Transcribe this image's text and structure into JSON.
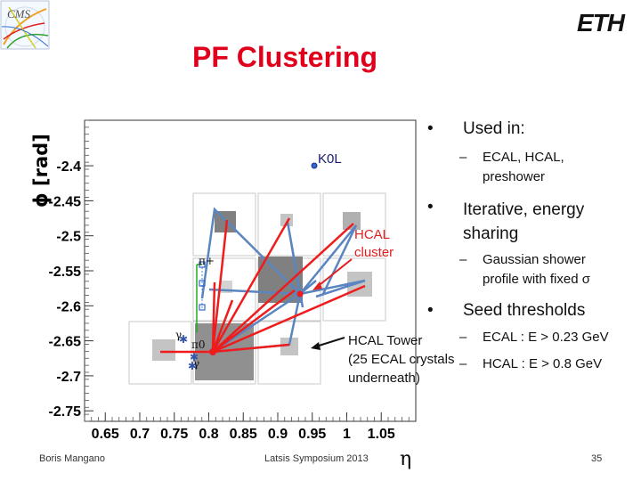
{
  "slide": {
    "title": "PF Clustering",
    "logo_left": "CMS",
    "logo_right": "ETH"
  },
  "chart_data": {
    "type": "scatter",
    "title": "",
    "xlabel": "η",
    "ylabel": "ϕ [rad]",
    "xlim": [
      0.62,
      1.1
    ],
    "ylim": [
      -2.765,
      -2.335
    ],
    "x_ticks": [
      "0.65",
      "0.7",
      "0.75",
      "0.8",
      "0.85",
      "0.9",
      "0.95",
      "1",
      "1.05"
    ],
    "y_ticks": [
      "-2.4",
      "-2.45",
      "-2.5",
      "-2.55",
      "-2.6",
      "-2.65",
      "-2.7",
      "-2.75"
    ],
    "annotations": [
      "K0L",
      "HCAL cluster",
      "HCAL Tower (25 ECAL crystals underneath)"
    ],
    "particle_labels": [
      "π+",
      "γ",
      "π0",
      "γ"
    ]
  },
  "bullets": [
    {
      "text": "Used in:",
      "sub": [
        "ECAL, HCAL, preshower"
      ]
    },
    {
      "text": "Iterative, energy sharing",
      "sub": [
        "Gaussian shower profile with fixed σ"
      ]
    },
    {
      "text": "Seed thresholds",
      "sub": [
        "ECAL : E > 0.23 GeV",
        "HCAL : E > 0.8 GeV"
      ]
    }
  ],
  "footer": {
    "author": "Boris Mangano",
    "event": "Latsis Symposium 2013",
    "page": "35"
  }
}
